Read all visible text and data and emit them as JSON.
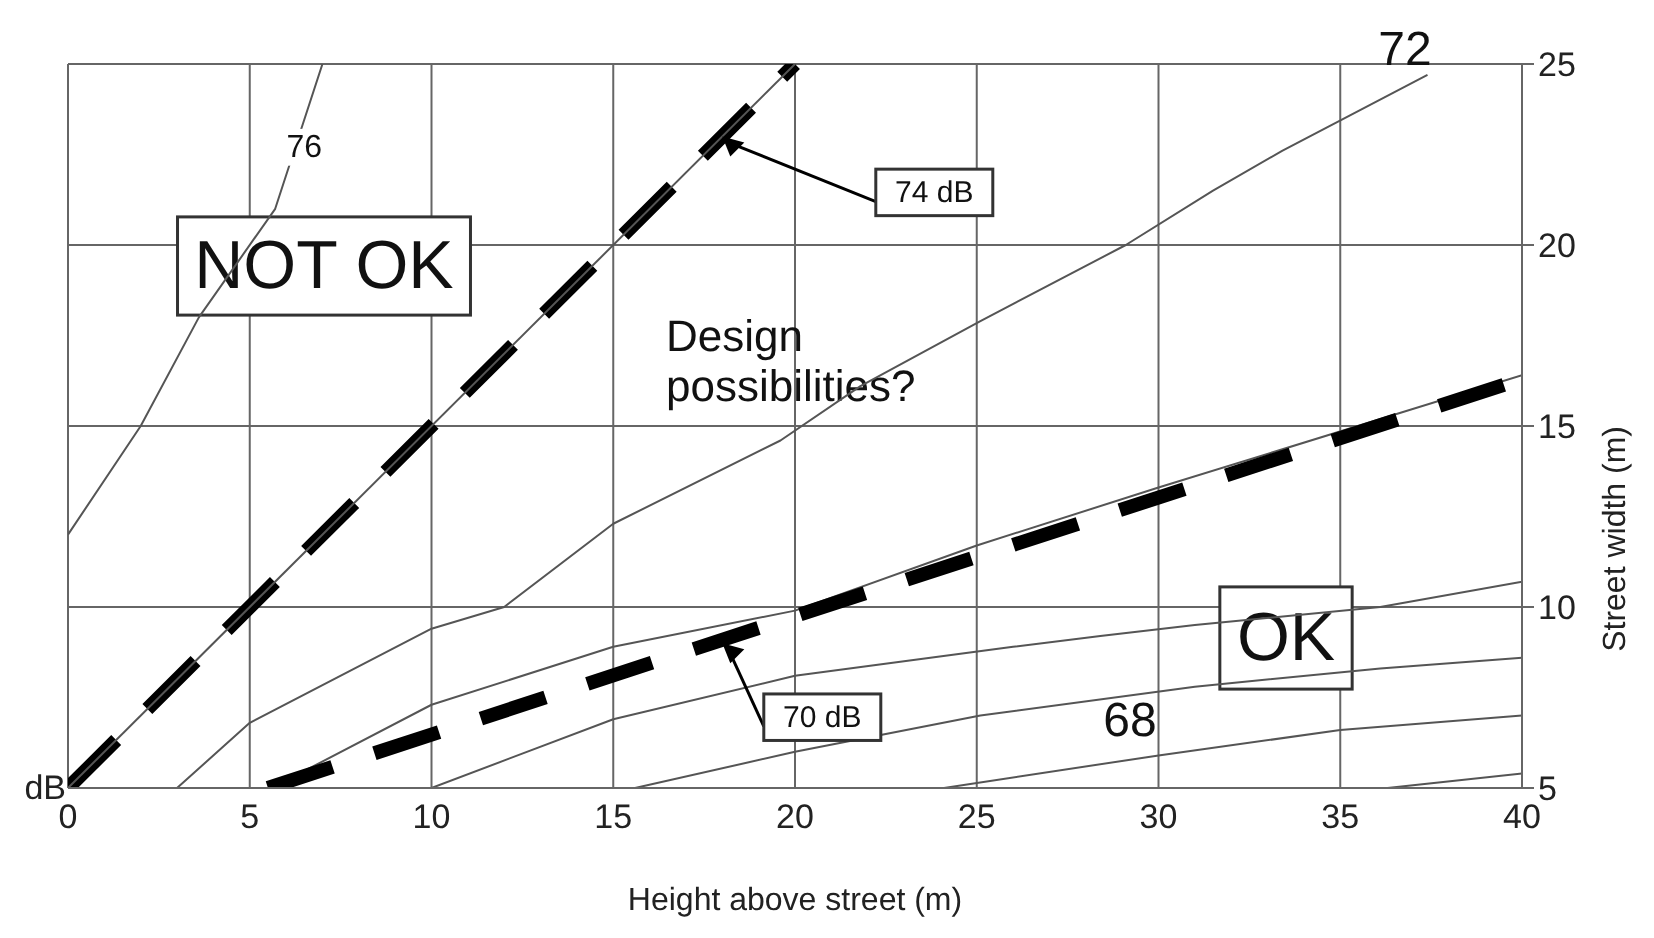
{
  "chart_data": {
    "type": "line",
    "xlabel": "Height above street (m)",
    "ylabel": "Street width (m)",
    "xlim": [
      0,
      40
    ],
    "ylim": [
      5,
      25
    ],
    "xticks": [
      0,
      5,
      10,
      15,
      20,
      25,
      30,
      35,
      40
    ],
    "yticks": [
      5,
      10,
      15,
      20,
      25
    ],
    "grid": true,
    "marker": "none",
    "series": [
      {
        "color": "#555555",
        "line_style": "solid",
        "x": [
          0,
          2,
          3.6,
          5.7,
          7
        ],
        "values": [
          12,
          15,
          18,
          21,
          25
        ]
      },
      {
        "color": "#555555",
        "line_style": "solid",
        "x": [
          3,
          5,
          10,
          12,
          15,
          19.6,
          21.8,
          25.1,
          29.1,
          31.5,
          33.4,
          37.4
        ],
        "values": [
          5,
          6.8,
          9.4,
          10,
          12.3,
          14.6,
          16.1,
          17.9,
          20,
          21.5,
          22.6,
          24.7
        ]
      },
      {
        "color": "#555555",
        "line_style": "solid",
        "x": [
          5.6,
          10,
          15,
          20,
          25,
          30,
          40
        ],
        "values": [
          5,
          7.3,
          8.9,
          9.9,
          11.7,
          13.3,
          16.4
        ]
      },
      {
        "color": "#555555",
        "line_style": "solid",
        "x": [
          10,
          15,
          20,
          26,
          28.4,
          31,
          36.1,
          40
        ],
        "values": [
          5,
          6.9,
          8.1,
          8.9,
          9.2,
          9.5,
          10,
          10.7
        ]
      },
      {
        "color": "#555555",
        "line_style": "solid",
        "x": [
          15.6,
          20,
          25.1,
          31,
          36.1,
          40
        ],
        "values": [
          5,
          6,
          7,
          7.8,
          8.3,
          8.6
        ]
      },
      {
        "color": "#555555",
        "line_style": "solid",
        "x": [
          24.1,
          30,
          35,
          40
        ],
        "values": [
          5,
          5.9,
          6.6,
          7
        ]
      },
      {
        "color": "#555555",
        "line_style": "solid",
        "x": [
          36.3,
          40
        ],
        "values": [
          5,
          5.4
        ]
      },
      {
        "color": "#000000",
        "line_style": "dashed",
        "x": [
          0,
          20
        ],
        "values": [
          5,
          25
        ]
      },
      {
        "color": "#000000",
        "line_style": "dashed",
        "x": [
          5.5,
          40
        ],
        "values": [
          5,
          16.3
        ]
      },
      {
        "color": "#555555",
        "line_style": "solid",
        "x": [
          0,
          20
        ],
        "values": [
          5,
          25
        ]
      }
    ],
    "annotations": [
      {
        "text": "76",
        "x": 6.5,
        "y": 22.7
      },
      {
        "text": "72",
        "x": 37,
        "y": 24.7
      },
      "68",
      "NOT OK",
      "Design possibilities?",
      "OK",
      {
        "text": "74 dB",
        "x": 18,
        "y": 23
      },
      {
        "text": "70 dB",
        "x": 18,
        "y": 9
      },
      "dB"
    ]
  }
}
